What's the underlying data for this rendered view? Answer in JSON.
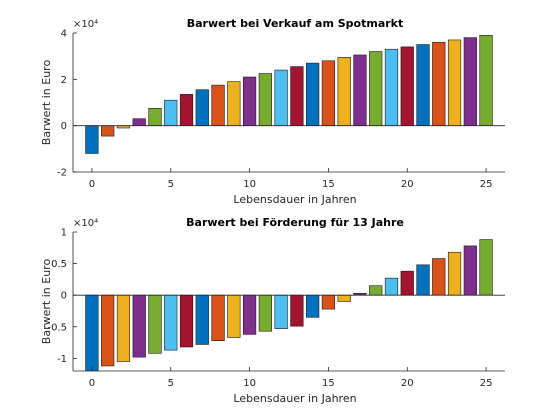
{
  "palette": [
    "#0072BD",
    "#D95319",
    "#EDB120",
    "#7E2F8E",
    "#77AC30",
    "#4DBEEE",
    "#A2142F"
  ],
  "chart_data": [
    {
      "type": "bar",
      "title": "Barwert bei Verkauf am Spotmarkt",
      "xlabel": "Lebensdauer in Jahren",
      "ylabel": "Barwert in Euro",
      "exponent_label": "×10⁴",
      "xlim": [
        -1.2,
        26.2
      ],
      "ylim": [
        -2,
        4
      ],
      "xticks": [
        0,
        5,
        10,
        15,
        20,
        25
      ],
      "yticks": [
        -2,
        0,
        2,
        4
      ],
      "grid": false,
      "x": [
        0,
        1,
        2,
        3,
        4,
        5,
        6,
        7,
        8,
        9,
        10,
        11,
        12,
        13,
        14,
        15,
        16,
        17,
        18,
        19,
        20,
        21,
        22,
        23,
        24,
        25
      ],
      "values": [
        -1.2,
        -0.45,
        -0.1,
        0.3,
        0.75,
        1.1,
        1.35,
        1.55,
        1.75,
        1.9,
        2.1,
        2.25,
        2.4,
        2.55,
        2.7,
        2.8,
        2.95,
        3.05,
        3.2,
        3.3,
        3.4,
        3.5,
        3.6,
        3.7,
        3.8,
        3.9
      ]
    },
    {
      "type": "bar",
      "title": "Barwert bei Förderung für 13 Jahre",
      "xlabel": "Lebensdauer in Jahren",
      "ylabel": "Barwert in Euro",
      "exponent_label": "×10⁴",
      "xlim": [
        -1.2,
        26.2
      ],
      "ylim": [
        -1.2,
        1
      ],
      "xticks": [
        0,
        5,
        10,
        15,
        20,
        25
      ],
      "yticks": [
        -1,
        -0.5,
        0,
        0.5,
        1
      ],
      "grid": false,
      "x": [
        0,
        1,
        2,
        3,
        4,
        5,
        6,
        7,
        8,
        9,
        10,
        11,
        12,
        13,
        14,
        15,
        16,
        17,
        18,
        19,
        20,
        21,
        22,
        23,
        24,
        25
      ],
      "values": [
        -1.2,
        -1.12,
        -1.05,
        -0.98,
        -0.92,
        -0.87,
        -0.82,
        -0.78,
        -0.72,
        -0.67,
        -0.62,
        -0.57,
        -0.53,
        -0.49,
        -0.35,
        -0.22,
        -0.1,
        0.03,
        0.15,
        0.27,
        0.38,
        0.48,
        0.58,
        0.68,
        0.78,
        0.88
      ]
    }
  ]
}
